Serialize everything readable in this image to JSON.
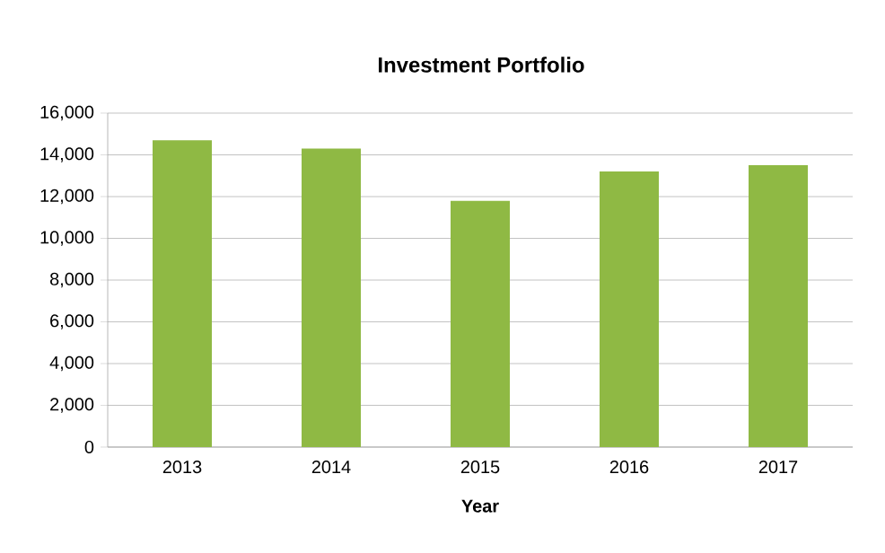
{
  "chart_data": {
    "type": "bar",
    "title": "Investment Portfolio",
    "xlabel": "Year",
    "categories": [
      "2013",
      "2014",
      "2015",
      "2016",
      "2017"
    ],
    "values": [
      14700,
      14300,
      11800,
      13200,
      13500
    ],
    "color": "#8fb944",
    "ylim": [
      0,
      16000
    ],
    "yticks": [
      0,
      {
        "value": 2000,
        "label": "2,000"
      },
      {
        "value": 4000,
        "label": "4,000"
      },
      {
        "value": 6000,
        "label": "6,000"
      },
      {
        "value": 8000,
        "label": "8,000"
      },
      {
        "value": 10000,
        "label": "10,000"
      },
      {
        "value": 12000,
        "label": "12,000"
      },
      {
        "value": 14000,
        "label": "14,000"
      },
      {
        "value": 16000,
        "label": "16,000"
      }
    ],
    "grid": "y"
  }
}
